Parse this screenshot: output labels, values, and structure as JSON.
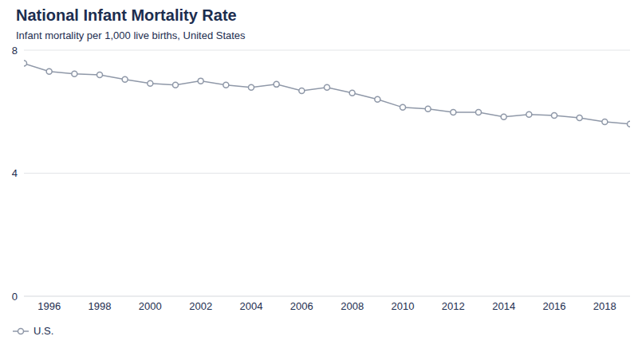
{
  "chart_data": {
    "type": "line",
    "title": "National Infant Mortality Rate",
    "subtitle": "Infant mortality per 1,000 live births, United States",
    "x": [
      1995,
      1996,
      1997,
      1998,
      1999,
      2000,
      2001,
      2002,
      2003,
      2004,
      2005,
      2006,
      2007,
      2008,
      2009,
      2010,
      2011,
      2012,
      2013,
      2014,
      2015,
      2016,
      2017,
      2018,
      2019
    ],
    "series": [
      {
        "name": "U.S.",
        "color": "#8f98a8",
        "marker": "circle",
        "values": [
          7.57,
          7.31,
          7.23,
          7.2,
          7.05,
          6.92,
          6.87,
          7.0,
          6.87,
          6.79,
          6.89,
          6.68,
          6.79,
          6.61,
          6.4,
          6.14,
          6.09,
          5.98,
          5.98,
          5.83,
          5.91,
          5.88,
          5.8,
          5.67,
          5.6
        ]
      }
    ],
    "xlim": [
      1995,
      2019
    ],
    "xticks": [
      1996,
      1998,
      2000,
      2002,
      2004,
      2006,
      2008,
      2010,
      2012,
      2014,
      2016,
      2018
    ],
    "ylim": [
      0,
      8
    ],
    "yticks": [
      0,
      4,
      8
    ],
    "grid": true,
    "legend": "bottom-left"
  }
}
